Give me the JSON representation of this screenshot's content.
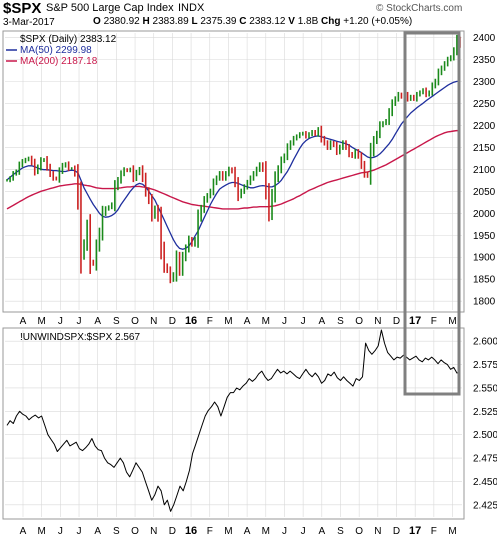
{
  "header": {
    "symbol": "$SPX",
    "name": "S&P 500 Large Cap Index",
    "exchange": "INDX",
    "watermark": "© StockCharts.com",
    "date": "3-Mar-2017",
    "open_label": "O",
    "open": "2380.92",
    "high_label": "H",
    "high": "2383.89",
    "low_label": "L",
    "low": "2375.39",
    "close_label": "C",
    "close": "2383.12",
    "volume_label": "V",
    "volume": "1.8B",
    "change_label": "Chg",
    "change": "+1.20 (+0.05%)"
  },
  "legend": {
    "price": "$SPX (Daily) 2383.12",
    "ma50": "MA(50) 2299.98",
    "ma200": "MA(200) 2187.18",
    "ratio": "!UNWINDSPX:$SPX 2.567"
  },
  "colors": {
    "price_up": "#1a8a1a",
    "price_down": "#cc2222",
    "ma50": "#1f2f9e",
    "ma200": "#c8174a",
    "ratio_line": "#000000",
    "highlight_box": "#808080",
    "grid": "#d9d9d9"
  },
  "x_axis_labels": [
    "A",
    "M",
    "J",
    "J",
    "A",
    "S",
    "O",
    "N",
    "D",
    "16",
    "F",
    "M",
    "A",
    "M",
    "J",
    "J",
    "A",
    "S",
    "O",
    "N",
    "D",
    "17",
    "F",
    "M"
  ],
  "chart_data": [
    {
      "type": "line",
      "title": "$SPX (Daily) 2383.12",
      "ylim": [
        1780,
        2410
      ],
      "yticks": [
        1800,
        1850,
        1900,
        1950,
        2000,
        2050,
        2100,
        2150,
        2200,
        2250,
        2300,
        2350,
        2400
      ],
      "x_labels": [
        "A",
        "M",
        "J",
        "J",
        "A",
        "S",
        "O",
        "N",
        "D",
        "16",
        "F",
        "M",
        "A",
        "M",
        "J",
        "J",
        "A",
        "S",
        "O",
        "N",
        "D",
        "17",
        "F",
        "M"
      ],
      "highlight_box": {
        "start_month": "Dec 2016",
        "end_month": "Mar 2017"
      },
      "series": [
        {
          "name": "$SPX (Daily)",
          "style": "ohlc",
          "values": [
            2075,
            2080,
            2090,
            2095,
            2110,
            2118,
            2122,
            2125,
            2115,
            2095,
            2105,
            2120,
            2122,
            2105,
            2090,
            2080,
            2078,
            2096,
            2108,
            2112,
            2102,
            2102,
            2090,
            2030,
            1905,
            1930,
            1970,
            1890,
            1885,
            1925,
            1955,
            2000,
            2010,
            2014,
            2020,
            2060,
            2075,
            2090,
            2099,
            2097,
            2100,
            2080,
            2092,
            2100,
            2080,
            2050,
            2030,
            1995,
            2010,
            1990,
            1920,
            1880,
            1870,
            1850,
            1860,
            1900,
            1870,
            1900,
            1920,
            1940,
            1930,
            1940,
            1990,
            2010,
            2030,
            2040,
            2050,
            2070,
            2080,
            2090,
            2080,
            2090,
            2100,
            2095,
            2070,
            2040,
            2050,
            2060,
            2070,
            2080,
            2090,
            2100,
            2110,
            2100,
            2050,
            2000,
            2040,
            2080,
            2100,
            2120,
            2130,
            2150,
            2160,
            2170,
            2175,
            2180,
            2182,
            2175,
            2180,
            2185,
            2180,
            2190,
            2170,
            2160,
            2150,
            2160,
            2155,
            2140,
            2150,
            2160,
            2150,
            2135,
            2130,
            2140,
            2130,
            2110,
            2090,
            2085,
            2140,
            2165,
            2180,
            2200,
            2205,
            2210,
            2230,
            2250,
            2260,
            2270,
            2265,
            2270,
            2260,
            2265,
            2260,
            2270,
            2275,
            2280,
            2270,
            2275,
            2290,
            2300,
            2320,
            2330,
            2340,
            2350,
            2355,
            2370,
            2395,
            2383
          ]
        },
        {
          "name": "MA(50)",
          "values": [
            2076,
            2082,
            2088,
            2093,
            2098,
            2103,
            2106,
            2108,
            2108,
            2106,
            2103,
            2100,
            2099,
            2099,
            2098,
            2097,
            2097,
            2096,
            2095,
            2095,
            2097,
            2098,
            2097,
            2092,
            2075,
            2058,
            2045,
            2032,
            2020,
            2010,
            2000,
            1993,
            1991,
            1992,
            1995,
            2000,
            2008,
            2020,
            2030,
            2040,
            2050,
            2058,
            2065,
            2068,
            2066,
            2060,
            2050,
            2040,
            2030,
            2015,
            2000,
            1985,
            1970,
            1955,
            1940,
            1928,
            1920,
            1918,
            1920,
            1925,
            1935,
            1948,
            1960,
            1975,
            1990,
            2005,
            2020,
            2033,
            2045,
            2055,
            2060,
            2064,
            2068,
            2070,
            2070,
            2068,
            2065,
            2062,
            2060,
            2058,
            2058,
            2060,
            2062,
            2063,
            2062,
            2060,
            2060,
            2063,
            2068,
            2075,
            2085,
            2095,
            2108,
            2122,
            2135,
            2148,
            2158,
            2165,
            2170,
            2173,
            2175,
            2176,
            2174,
            2172,
            2170,
            2168,
            2166,
            2164,
            2162,
            2160,
            2158,
            2155,
            2150,
            2146,
            2142,
            2138,
            2133,
            2128,
            2126,
            2127,
            2130,
            2135,
            2142,
            2150,
            2158,
            2168,
            2180,
            2192,
            2203,
            2212,
            2220,
            2228,
            2234,
            2240,
            2245,
            2250,
            2256,
            2261,
            2266,
            2271,
            2276,
            2281,
            2286,
            2291,
            2295,
            2298,
            2300,
            2300
          ]
        },
        {
          "name": "MA(200)",
          "values": [
            2010,
            2014,
            2018,
            2022,
            2026,
            2030,
            2034,
            2038,
            2041,
            2044,
            2047,
            2050,
            2052,
            2054,
            2056,
            2058,
            2060,
            2062,
            2063,
            2064,
            2065,
            2066,
            2067,
            2067,
            2066,
            2064,
            2063,
            2062,
            2060,
            2058,
            2057,
            2056,
            2056,
            2056,
            2056,
            2056,
            2057,
            2058,
            2059,
            2060,
            2060,
            2061,
            2061,
            2061,
            2060,
            2059,
            2057,
            2055,
            2053,
            2050,
            2047,
            2044,
            2041,
            2038,
            2035,
            2032,
            2029,
            2026,
            2024,
            2022,
            2020,
            2019,
            2018,
            2017,
            2016,
            2015,
            2014,
            2013,
            2012,
            2011,
            2010,
            2010,
            2010,
            2010,
            2010,
            2010,
            2011,
            2012,
            2012,
            2013,
            2014,
            2014,
            2015,
            2015,
            2015,
            2015,
            2016,
            2017,
            2019,
            2021,
            2024,
            2027,
            2030,
            2033,
            2037,
            2040,
            2044,
            2048,
            2052,
            2055,
            2058,
            2061,
            2064,
            2067,
            2070,
            2072,
            2074,
            2076,
            2078,
            2080,
            2082,
            2084,
            2086,
            2088,
            2090,
            2092,
            2093,
            2094,
            2096,
            2098,
            2101,
            2104,
            2107,
            2110,
            2114,
            2118,
            2122,
            2126,
            2130,
            2134,
            2138,
            2142,
            2146,
            2150,
            2154,
            2158,
            2162,
            2166,
            2170,
            2174,
            2177,
            2180,
            2183,
            2185,
            2186,
            2187,
            2188,
            2187
          ]
        }
      ]
    },
    {
      "type": "line",
      "title": "!UNWINDSPX:$SPX 2.567",
      "ylim": [
        2.412,
        2.612
      ],
      "yticks": [
        2.425,
        2.45,
        2.475,
        2.5,
        2.525,
        2.55,
        2.575,
        2.6
      ],
      "x_labels": [
        "A",
        "M",
        "J",
        "J",
        "A",
        "S",
        "O",
        "N",
        "D",
        "16",
        "F",
        "M",
        "A",
        "M",
        "J",
        "J",
        "A",
        "S",
        "O",
        "N",
        "D",
        "17",
        "F",
        "M"
      ],
      "series": [
        {
          "name": "!UNWINDSPX:$SPX",
          "values": [
            2.51,
            2.515,
            2.512,
            2.52,
            2.525,
            2.522,
            2.52,
            2.516,
            2.519,
            2.521,
            2.518,
            2.52,
            2.51,
            2.5,
            2.495,
            2.49,
            2.482,
            2.486,
            2.49,
            2.494,
            2.488,
            2.49,
            2.492,
            2.485,
            2.483,
            2.486,
            2.49,
            2.496,
            2.488,
            2.484,
            2.483,
            2.475,
            2.47,
            2.468,
            2.465,
            2.47,
            2.475,
            2.47,
            2.46,
            2.455,
            2.462,
            2.47,
            2.465,
            2.46,
            2.45,
            2.44,
            2.43,
            2.436,
            2.445,
            2.44,
            2.425,
            2.43,
            2.418,
            2.425,
            2.435,
            2.445,
            2.44,
            2.45,
            2.462,
            2.48,
            2.49,
            2.5,
            2.51,
            2.52,
            2.526,
            2.53,
            2.535,
            2.53,
            2.52,
            2.53,
            2.54,
            2.545,
            2.545,
            2.55,
            2.548,
            2.552,
            2.555,
            2.56,
            2.557,
            2.56,
            2.565,
            2.568,
            2.562,
            2.558,
            2.56,
            2.565,
            2.57,
            2.566,
            2.568,
            2.565,
            2.568,
            2.565,
            2.562,
            2.56,
            2.565,
            2.57,
            2.565,
            2.562,
            2.566,
            2.562,
            2.555,
            2.558,
            2.565,
            2.563,
            2.567,
            2.561,
            2.558,
            2.562,
            2.558,
            2.555,
            2.552,
            2.56,
            2.558,
            2.562,
            2.598,
            2.59,
            2.586,
            2.59,
            2.595,
            2.612,
            2.598,
            2.588,
            2.584,
            2.58,
            2.583,
            2.582,
            2.585,
            2.583,
            2.58,
            2.582,
            2.584,
            2.58,
            2.578,
            2.582,
            2.58,
            2.583,
            2.58,
            2.576,
            2.58,
            2.577,
            2.575,
            2.57,
            2.572,
            2.566,
            2.567
          ]
        }
      ]
    }
  ]
}
